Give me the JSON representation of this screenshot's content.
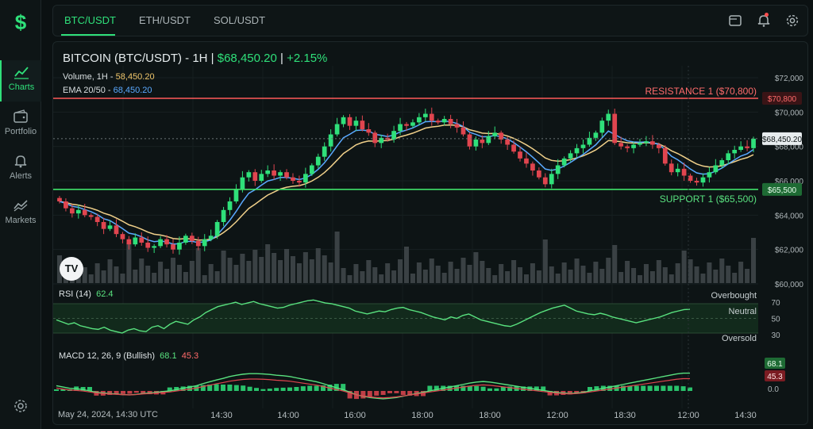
{
  "app": {
    "logo": "$"
  },
  "sidebar": {
    "items": [
      {
        "label": "Charts",
        "icon": "chart-line-icon",
        "active": true
      },
      {
        "label": "Portfolio",
        "icon": "wallet-icon",
        "active": false
      },
      {
        "label": "Alerts",
        "icon": "bell-icon",
        "active": false
      },
      {
        "label": "Markets",
        "icon": "trend-icon",
        "active": false
      }
    ],
    "settings_icon": "gear-icon"
  },
  "tabs": [
    {
      "label": "BTC/USDT",
      "active": true
    },
    {
      "label": "ETH/USDT",
      "active": false
    },
    {
      "label": "SOL/USDT",
      "active": false
    }
  ],
  "topbar_icons": [
    "window-icon",
    "bell-icon",
    "gear-icon"
  ],
  "header": {
    "title": "BITCOIN (BTC/USDT) - 1H",
    "sep": "|",
    "price": "$68,450.20",
    "change": "+2.15%",
    "volume_label": "Volume, 1H -",
    "volume_value": "58,450.20",
    "ema_label": "EMA 20/50 -",
    "ema_value": "68,450.20"
  },
  "levels": {
    "resistance_label": "RESISTANCE 1 ($70,800)",
    "resistance_tag": "$70,800",
    "support_label": "SUPPORT 1 ($65,500)",
    "support_tag": "$65,500",
    "price_tag": "$68,450.20"
  },
  "price_axis": [
    "$72,000",
    "$70,000",
    "$68,000",
    "$66,000",
    "$64,000",
    "$62,000",
    "$60,000"
  ],
  "rsi": {
    "label": "RSI (14)",
    "value": "62.4",
    "overbought": "Overbought",
    "neutral": "Neutral",
    "oversold": "Oversold",
    "ticks": [
      "70",
      "50",
      "30"
    ]
  },
  "macd": {
    "label": "MACD 12, 26, 9 (Bullish)",
    "v1": "68.1",
    "v2": "45.3",
    "tag1": "68.1",
    "tag2": "45.3",
    "tag3": "0.0"
  },
  "time_axis": {
    "date": "May 24, 2024, 14:30 UTC",
    "ticks": [
      "14:30",
      "14:00",
      "16:00",
      "18:00",
      "18:00",
      "12:00",
      "18:30",
      "12:00",
      "14:30"
    ]
  },
  "watermark": "TV",
  "colors": {
    "accent": "#2fe07a",
    "up": "#2fe07a",
    "down": "#e0454f",
    "resistance": "#ff5a5a",
    "support": "#3fe06a",
    "ema_fast": "#5aa9ff",
    "ema_slow": "#f0d08a"
  },
  "chart_data": {
    "type": "candlestick",
    "ylim": [
      60000,
      72000
    ],
    "resistance": 70800,
    "support": 65500,
    "last": 68450.2,
    "close": [
      64800,
      64400,
      64100,
      64300,
      64000,
      63900,
      63600,
      63200,
      63400,
      62900,
      62600,
      62300,
      62700,
      62400,
      62100,
      62200,
      62600,
      62300,
      62000,
      62400,
      62800,
      62500,
      62200,
      62600,
      62800,
      63600,
      64300,
      64800,
      65500,
      66200,
      66500,
      66000,
      66400,
      66600,
      66300,
      66500,
      66200,
      66000,
      65900,
      66400,
      66900,
      67400,
      68000,
      68700,
      69300,
      69700,
      69200,
      69500,
      69000,
      68800,
      68200,
      68500,
      68400,
      68900,
      69300,
      69200,
      69400,
      69700,
      69900,
      69500,
      69400,
      69600,
      69300,
      69100,
      68700,
      68000,
      68400,
      68200,
      68600,
      68800,
      68400,
      68100,
      67700,
      67300,
      67000,
      66600,
      66200,
      65800,
      66400,
      66900,
      67300,
      67600,
      67900,
      68100,
      68500,
      68800,
      69500,
      69900,
      68200,
      68000,
      67900,
      68100,
      68200,
      68300,
      68100,
      67900,
      67000,
      66500,
      66700,
      66300,
      66000,
      65900,
      66200,
      66500,
      66900,
      67200,
      67600,
      67800,
      68000,
      67900,
      68450
    ],
    "rsi": [
      48,
      45,
      42,
      44,
      40,
      38,
      36,
      35,
      38,
      34,
      32,
      30,
      34,
      36,
      33,
      32,
      38,
      40,
      36,
      42,
      46,
      44,
      42,
      48,
      52,
      58,
      62,
      66,
      68,
      70,
      72,
      69,
      71,
      73,
      70,
      68,
      66,
      64,
      65,
      68,
      70,
      72,
      74,
      75,
      73,
      71,
      70,
      68,
      66,
      64,
      60,
      58,
      56,
      58,
      60,
      59,
      62,
      64,
      65,
      62,
      60,
      58,
      55,
      52,
      50,
      48,
      52,
      50,
      54,
      56,
      52,
      48,
      46,
      44,
      42,
      40,
      39,
      42,
      46,
      50,
      54,
      58,
      61,
      64,
      66,
      68,
      64,
      60,
      58,
      56,
      55,
      57,
      55,
      52,
      50,
      48,
      46,
      44,
      46,
      48,
      50,
      52,
      55,
      58,
      60,
      62,
      62.4
    ],
    "macd": [
      20,
      15,
      10,
      8,
      5,
      0,
      -5,
      -8,
      -10,
      -12,
      -14,
      -15,
      -13,
      -10,
      -8,
      -5,
      -2,
      0,
      5,
      10,
      15,
      20,
      28,
      35,
      42,
      48,
      55,
      60,
      64,
      66,
      66,
      65,
      63,
      60,
      58,
      55,
      50,
      45,
      40,
      35,
      28,
      20,
      12,
      5,
      -5,
      -15,
      -20,
      -25,
      -28,
      -30,
      -28,
      -25,
      -20,
      -15,
      -10,
      -5,
      0,
      5,
      10,
      15,
      20,
      25,
      30,
      34,
      36,
      34,
      30,
      26,
      22,
      18,
      14,
      10,
      6,
      2,
      -2,
      -6,
      -8,
      -10,
      -8,
      -5,
      0,
      5,
      10,
      15,
      20,
      25,
      30,
      35,
      40,
      45,
      50,
      55,
      60,
      65,
      68,
      68.1
    ]
  }
}
